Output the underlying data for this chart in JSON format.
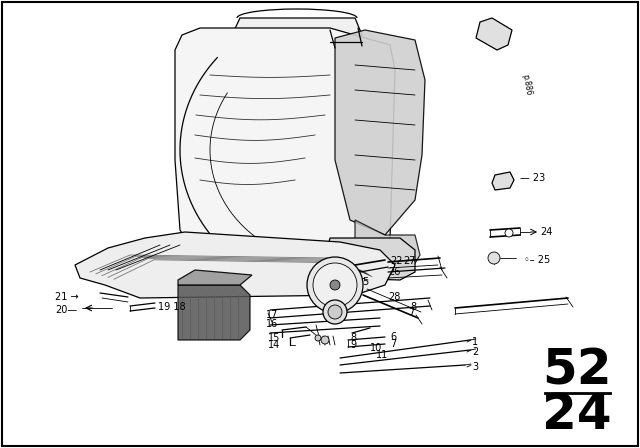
{
  "background_color": "#ffffff",
  "border_color": "#000000",
  "section_top": "52",
  "section_bottom": "24",
  "lw_main": 1.2,
  "lw_thin": 0.6,
  "lw_med": 0.9,
  "col": "#000000",
  "gray_dark": "#444444",
  "gray_mid": "#888888",
  "gray_light": "#cccccc",
  "gray_lighter": "#e8e8e8",
  "label_fontsize": 7.0,
  "section_fontsize": 36
}
